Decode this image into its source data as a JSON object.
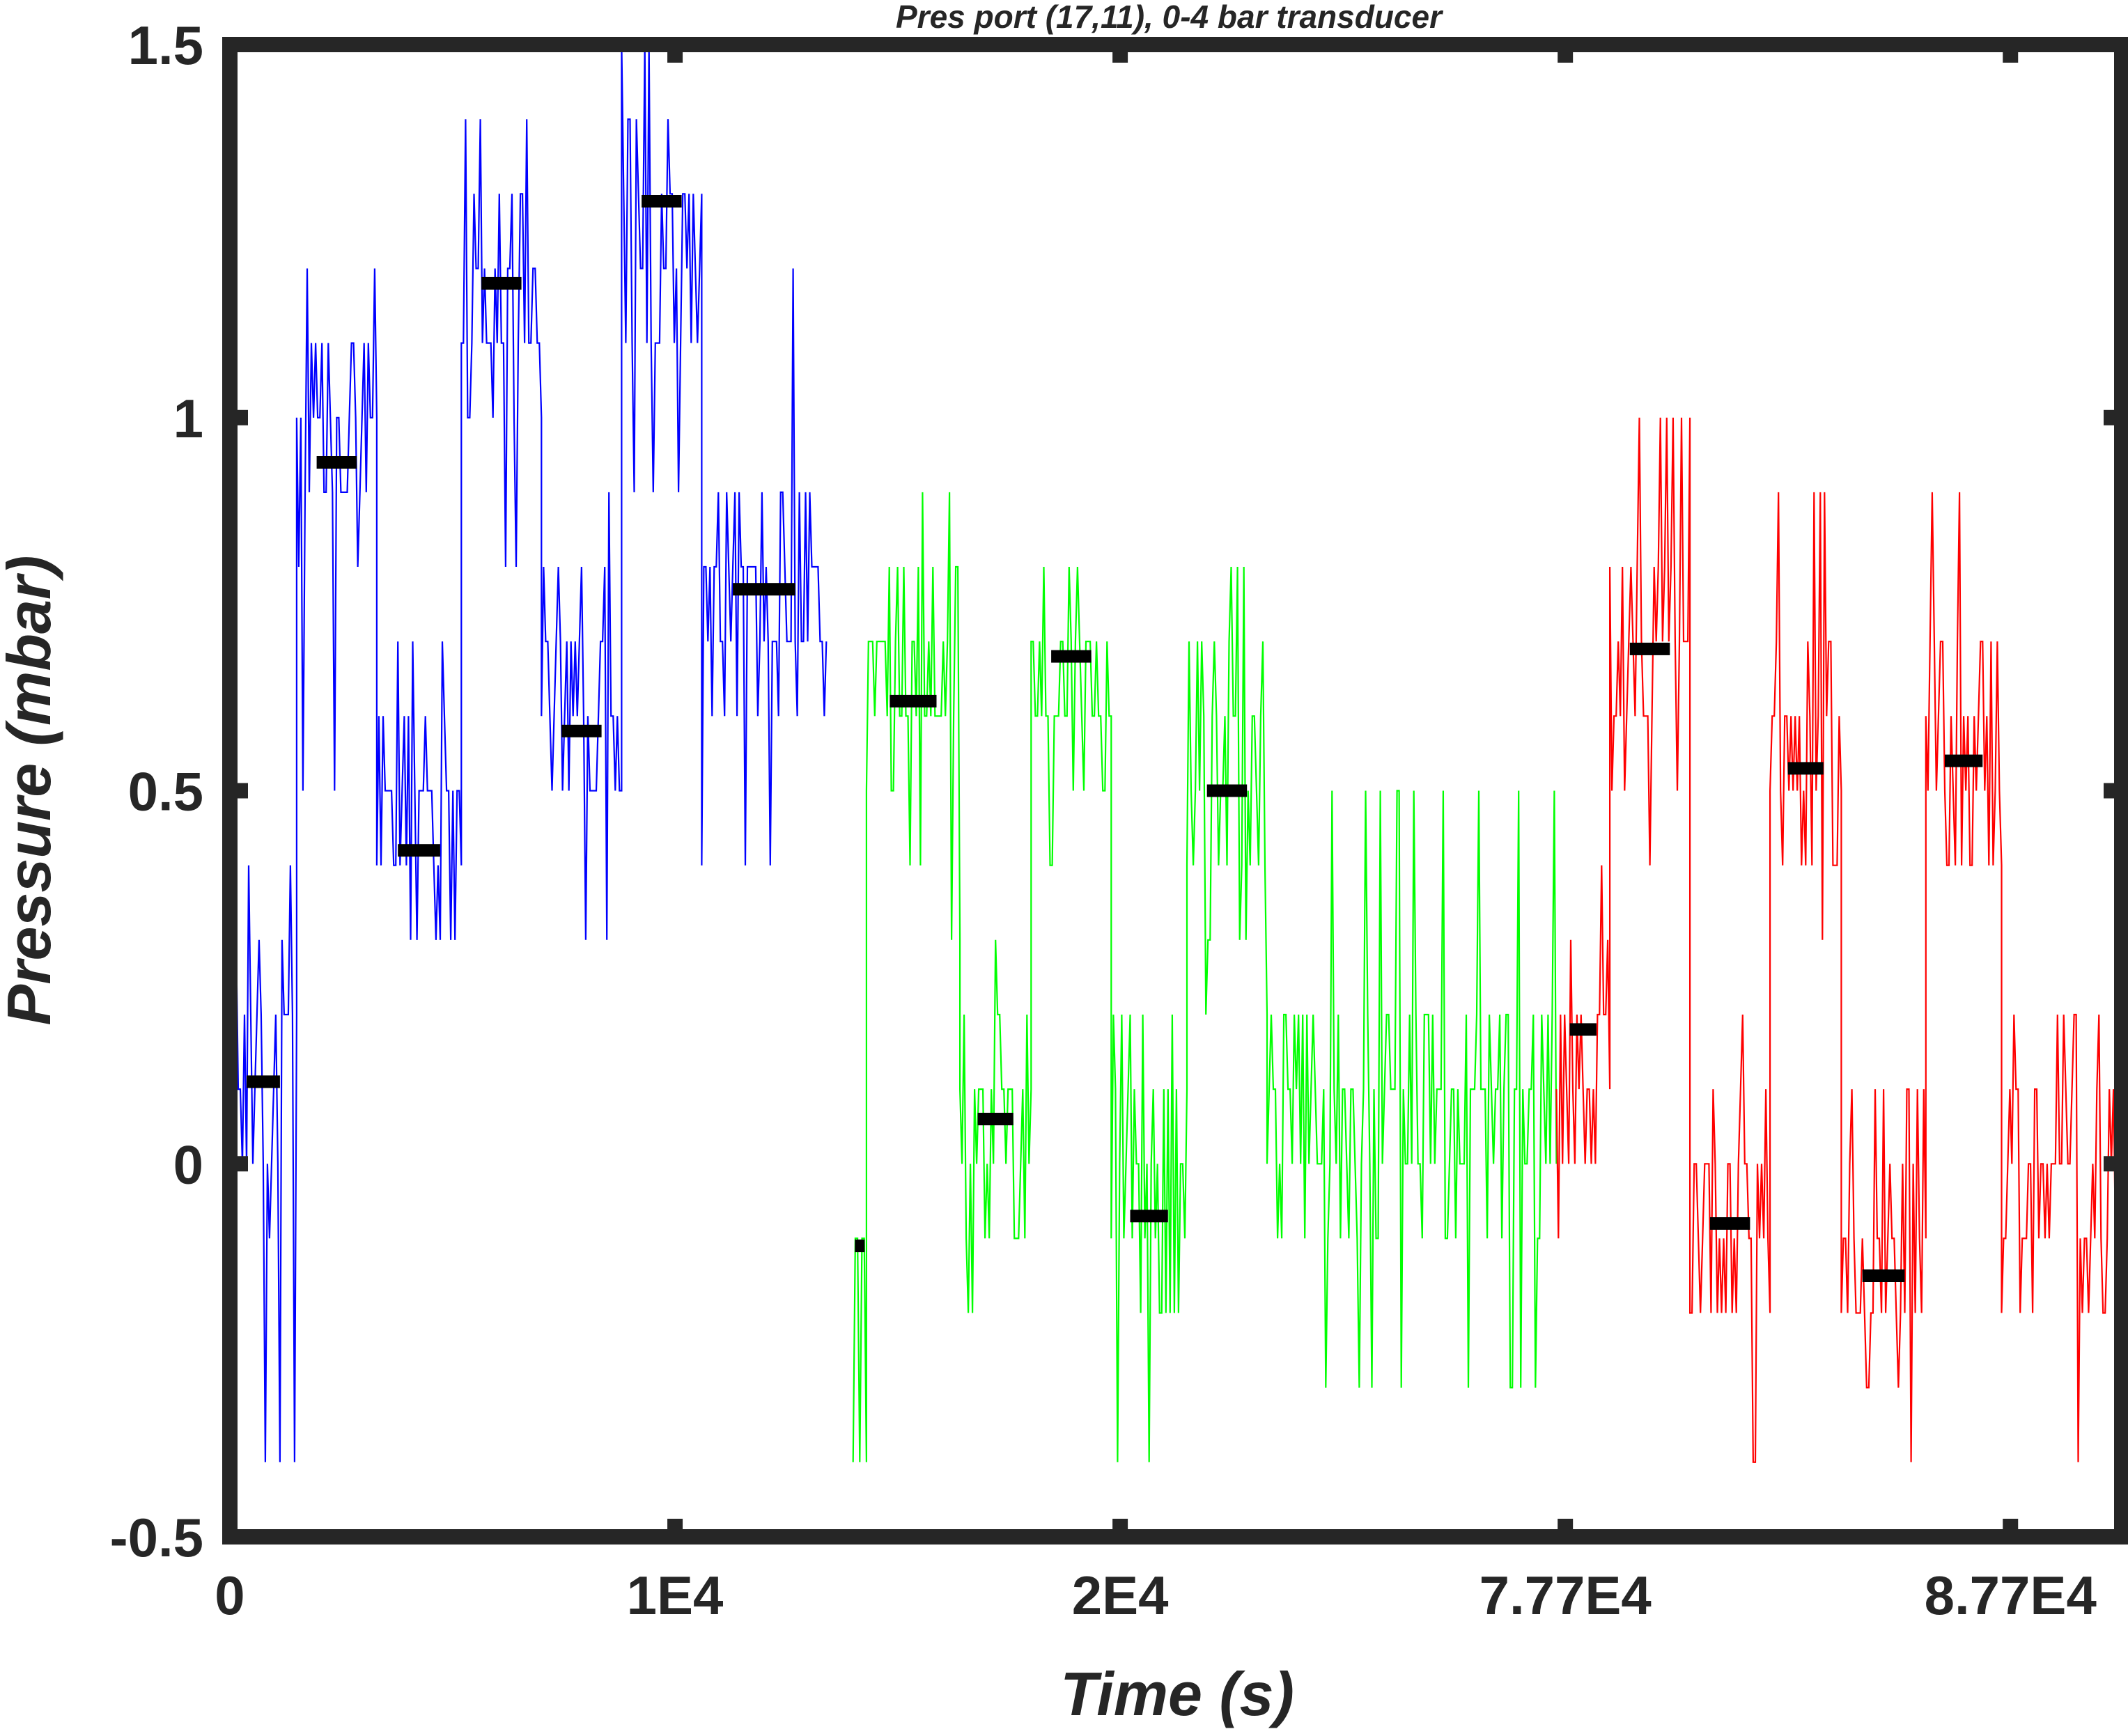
{
  "chart_data": {
    "type": "line",
    "title": "Pres port (17,11), 0-4 bar transducer",
    "xlabel": "Time (s)",
    "ylabel": "Pressure (mbar)",
    "ylim": [
      -0.5,
      1.5
    ],
    "yticks": [
      "-0.5",
      "0",
      "0.5",
      "1",
      "1.5"
    ],
    "xticks": [
      "0",
      "1E4",
      "2E4",
      "7.77E4",
      "8.77E4"
    ],
    "xaxis_note": "piecewise axis: display units 0-4.25; tick 1E4 at 1, 2E4 at 2, 7.77E4 at 3, 8.77E4 at 4",
    "grid": false,
    "legend": "none",
    "colors": {
      "blue": "#0000ff",
      "green": "#00ff00",
      "red": "#ff0000",
      "mean": "#000000",
      "axes": "#262626"
    },
    "series": [
      {
        "color": "blue",
        "steps": [
          {
            "x0": 0.0,
            "x1": 0.15,
            "mean": 0.11,
            "lo": -0.1,
            "hi": 0.3,
            "slo": -0.4,
            "shi": 0.4
          },
          {
            "x0": 0.15,
            "x1": 0.33,
            "mean": 0.94,
            "lo": 0.8,
            "hi": 1.1,
            "slo": 0.5,
            "shi": 1.2
          },
          {
            "x0": 0.33,
            "x1": 0.52,
            "mean": 0.42,
            "lo": 0.3,
            "hi": 0.6,
            "slo": 0.1,
            "shi": 0.7
          },
          {
            "x0": 0.52,
            "x1": 0.7,
            "mean": 1.18,
            "lo": 1.0,
            "hi": 1.3,
            "slo": 0.8,
            "shi": 1.4
          },
          {
            "x0": 0.7,
            "x1": 0.88,
            "mean": 0.58,
            "lo": 0.5,
            "hi": 0.8,
            "slo": 0.3,
            "shi": 0.9
          },
          {
            "x0": 0.88,
            "x1": 1.06,
            "mean": 1.29,
            "lo": 1.1,
            "hi": 1.4,
            "slo": 0.9,
            "shi": 1.5
          },
          {
            "x0": 1.06,
            "x1": 1.34,
            "mean": 0.77,
            "lo": 0.6,
            "hi": 0.9,
            "slo": 0.4,
            "shi": 1.2
          }
        ]
      },
      {
        "color": "green",
        "steps": [
          {
            "x0": 1.4,
            "x1": 1.43,
            "mean": -0.11,
            "lo": -0.3,
            "hi": 0.1,
            "slo": -0.4,
            "shi": 0.2
          },
          {
            "x0": 1.43,
            "x1": 1.64,
            "mean": 0.62,
            "lo": 0.4,
            "hi": 0.8,
            "slo": 0.3,
            "shi": 0.9
          },
          {
            "x0": 1.64,
            "x1": 1.8,
            "mean": 0.06,
            "lo": -0.1,
            "hi": 0.2,
            "slo": -0.2,
            "shi": 0.3
          },
          {
            "x0": 1.8,
            "x1": 1.98,
            "mean": 0.68,
            "lo": 0.5,
            "hi": 0.8,
            "slo": 0.4,
            "shi": 1.0
          },
          {
            "x0": 1.98,
            "x1": 2.15,
            "mean": -0.07,
            "lo": -0.2,
            "hi": 0.1,
            "slo": -0.4,
            "shi": 0.2
          },
          {
            "x0": 2.15,
            "x1": 2.33,
            "mean": 0.5,
            "lo": 0.3,
            "hi": 0.7,
            "slo": 0.2,
            "shi": 0.8
          },
          {
            "x0": 2.33,
            "x1": 2.98,
            "mean": null,
            "lo": -0.1,
            "hi": 0.2,
            "slo": -0.3,
            "shi": 0.5
          }
        ]
      },
      {
        "color": "red",
        "steps": [
          {
            "x0": 2.98,
            "x1": 3.1,
            "mean": 0.18,
            "lo": 0.0,
            "hi": 0.3,
            "slo": -0.1,
            "shi": 0.4
          },
          {
            "x0": 3.1,
            "x1": 3.28,
            "mean": 0.69,
            "lo": 0.5,
            "hi": 0.8,
            "slo": 0.4,
            "shi": 1.0
          },
          {
            "x0": 3.28,
            "x1": 3.46,
            "mean": -0.08,
            "lo": -0.2,
            "hi": 0.1,
            "slo": -0.4,
            "shi": 0.2
          },
          {
            "x0": 3.46,
            "x1": 3.62,
            "mean": 0.53,
            "lo": 0.4,
            "hi": 0.7,
            "slo": 0.3,
            "shi": 0.9
          },
          {
            "x0": 3.62,
            "x1": 3.81,
            "mean": -0.15,
            "lo": -0.3,
            "hi": 0.0,
            "slo": -0.4,
            "shi": 0.1
          },
          {
            "x0": 3.81,
            "x1": 3.98,
            "mean": 0.54,
            "lo": 0.4,
            "hi": 0.7,
            "slo": 0.3,
            "shi": 0.9
          },
          {
            "x0": 3.98,
            "x1": 4.25,
            "mean": null,
            "lo": -0.2,
            "hi": 0.1,
            "slo": -0.4,
            "shi": 0.2
          }
        ]
      }
    ]
  }
}
